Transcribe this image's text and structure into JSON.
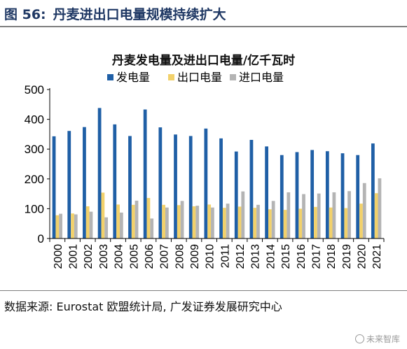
{
  "figure": {
    "label": "图 56:",
    "title": "丹麦进出口电量规模持续扩大"
  },
  "source": "数据来源: Eurostat 欧盟统计局, 广发证券发展研究中心",
  "watermark": "未来智库",
  "chart_data": {
    "type": "bar",
    "title": "丹麦发电量及进出口电量/亿千瓦时",
    "xlabel": "",
    "ylabel": "",
    "ylim": [
      0,
      500
    ],
    "yticks": [
      0,
      100,
      200,
      300,
      400,
      500
    ],
    "grid": false,
    "legend_position": "top-center",
    "categories": [
      "2000",
      "2001",
      "2002",
      "2003",
      "2004",
      "2005",
      "2006",
      "2007",
      "2008",
      "2009",
      "2010",
      "2011",
      "2012",
      "2013",
      "2014",
      "2015",
      "2016",
      "2017",
      "2018",
      "2019",
      "2020",
      "2021"
    ],
    "series": [
      {
        "name": "发电量",
        "color": "#1f5fa6",
        "values": [
          343,
          361,
          374,
          438,
          383,
          344,
          433,
          373,
          349,
          344,
          369,
          336,
          292,
          331,
          309,
          280,
          290,
          297,
          293,
          286,
          280,
          319
        ]
      },
      {
        "name": "出口电量",
        "color": "#f2d16b",
        "values": [
          78,
          84,
          108,
          154,
          114,
          113,
          136,
          113,
          112,
          108,
          114,
          103,
          107,
          103,
          98,
          96,
          100,
          106,
          104,
          102,
          117,
          152
        ]
      },
      {
        "name": "进口电量",
        "color": "#b4b4b4",
        "values": [
          83,
          81,
          90,
          71,
          87,
          127,
          67,
          104,
          126,
          110,
          104,
          117,
          158,
          113,
          126,
          155,
          149,
          151,
          155,
          159,
          186,
          202
        ]
      }
    ]
  }
}
